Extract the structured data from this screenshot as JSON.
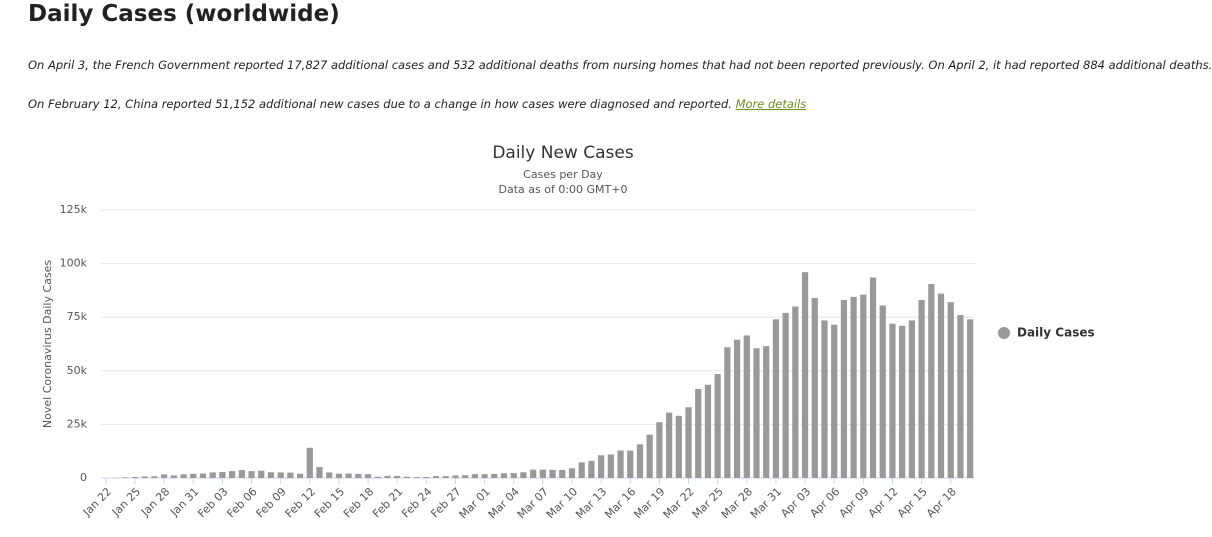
{
  "header": {
    "title": "Daily Cases (worldwide)",
    "note1": "On April 3, the French Government reported 17,827 additional cases and 532 additional deaths from nursing homes that had not been reported previously. On April 2, it had reported 884 additional deaths.",
    "note2": "On February 12, China reported 51,152 additional new cases due to a change in how cases were diagnosed and reported.",
    "link": "More details"
  },
  "chart_data": {
    "type": "bar",
    "title": "Daily New Cases",
    "subtitle": [
      "Cases per Day",
      "Data as of 0:00 GMT+0"
    ],
    "y_label": "Novel Coronavirus Daily Cases",
    "categories": [
      "Jan 22",
      null,
      null,
      "Jan 25",
      null,
      null,
      "Jan 28",
      null,
      null,
      "Jan 31",
      null,
      null,
      "Feb 03",
      null,
      null,
      "Feb 06",
      null,
      null,
      "Feb 09",
      null,
      null,
      "Feb 12",
      null,
      null,
      "Feb 15",
      null,
      null,
      "Feb 18",
      null,
      null,
      "Feb 21",
      null,
      null,
      "Feb 24",
      null,
      null,
      "Feb 27",
      null,
      null,
      "Mar 01",
      null,
      null,
      "Mar 04",
      null,
      null,
      "Mar 07",
      null,
      null,
      "Mar 10",
      null,
      null,
      "Mar 13",
      null,
      null,
      "Mar 16",
      null,
      null,
      "Mar 19",
      null,
      null,
      "Mar 22",
      null,
      null,
      "Mar 25",
      null,
      null,
      "Mar 28",
      null,
      null,
      "Mar 31",
      null,
      null,
      "Apr 03",
      null,
      null,
      "Apr 06",
      null,
      null,
      "Apr 09",
      null,
      null,
      "Apr 12",
      null,
      null,
      "Apr 15",
      null,
      null,
      "Apr 18",
      null,
      null
    ],
    "series": [
      {
        "name": "Daily Cases",
        "color": "#999999",
        "values": [
          0,
          100,
          300,
          500,
          700,
          800,
          1700,
          1200,
          1700,
          2000,
          2100,
          2600,
          2800,
          3200,
          3700,
          3200,
          3400,
          2700,
          2600,
          2500,
          2000,
          14100,
          5100,
          2600,
          2000,
          2100,
          1900,
          1800,
          600,
          1000,
          1000,
          600,
          400,
          500,
          900,
          900,
          1200,
          1300,
          1800,
          1800,
          1900,
          2200,
          2300,
          2700,
          3900,
          3900,
          3800,
          3800,
          4500,
          7300,
          8000,
          10600,
          11000,
          12800,
          12800,
          15700,
          20200,
          26000,
          30500,
          29000,
          33000,
          41500,
          43500,
          48500,
          61000,
          64500,
          66500,
          60500,
          61500,
          74000,
          77000,
          80000,
          96000,
          84000,
          73500,
          71500,
          83000,
          84500,
          85500,
          93500,
          80500,
          72000,
          71000,
          73500,
          83000,
          90500,
          86000,
          82000,
          76000,
          74000
        ]
      }
    ],
    "ylim": [
      0,
      125000
    ],
    "yticks": [
      0,
      {
        "value": 25000,
        "label": "25k"
      },
      {
        "value": 50000,
        "label": "50k"
      },
      {
        "value": 75000,
        "label": "75k"
      },
      {
        "value": 100000,
        "label": "100k"
      },
      {
        "value": 125000,
        "label": "125k"
      }
    ],
    "grid": true,
    "legend": "right"
  }
}
